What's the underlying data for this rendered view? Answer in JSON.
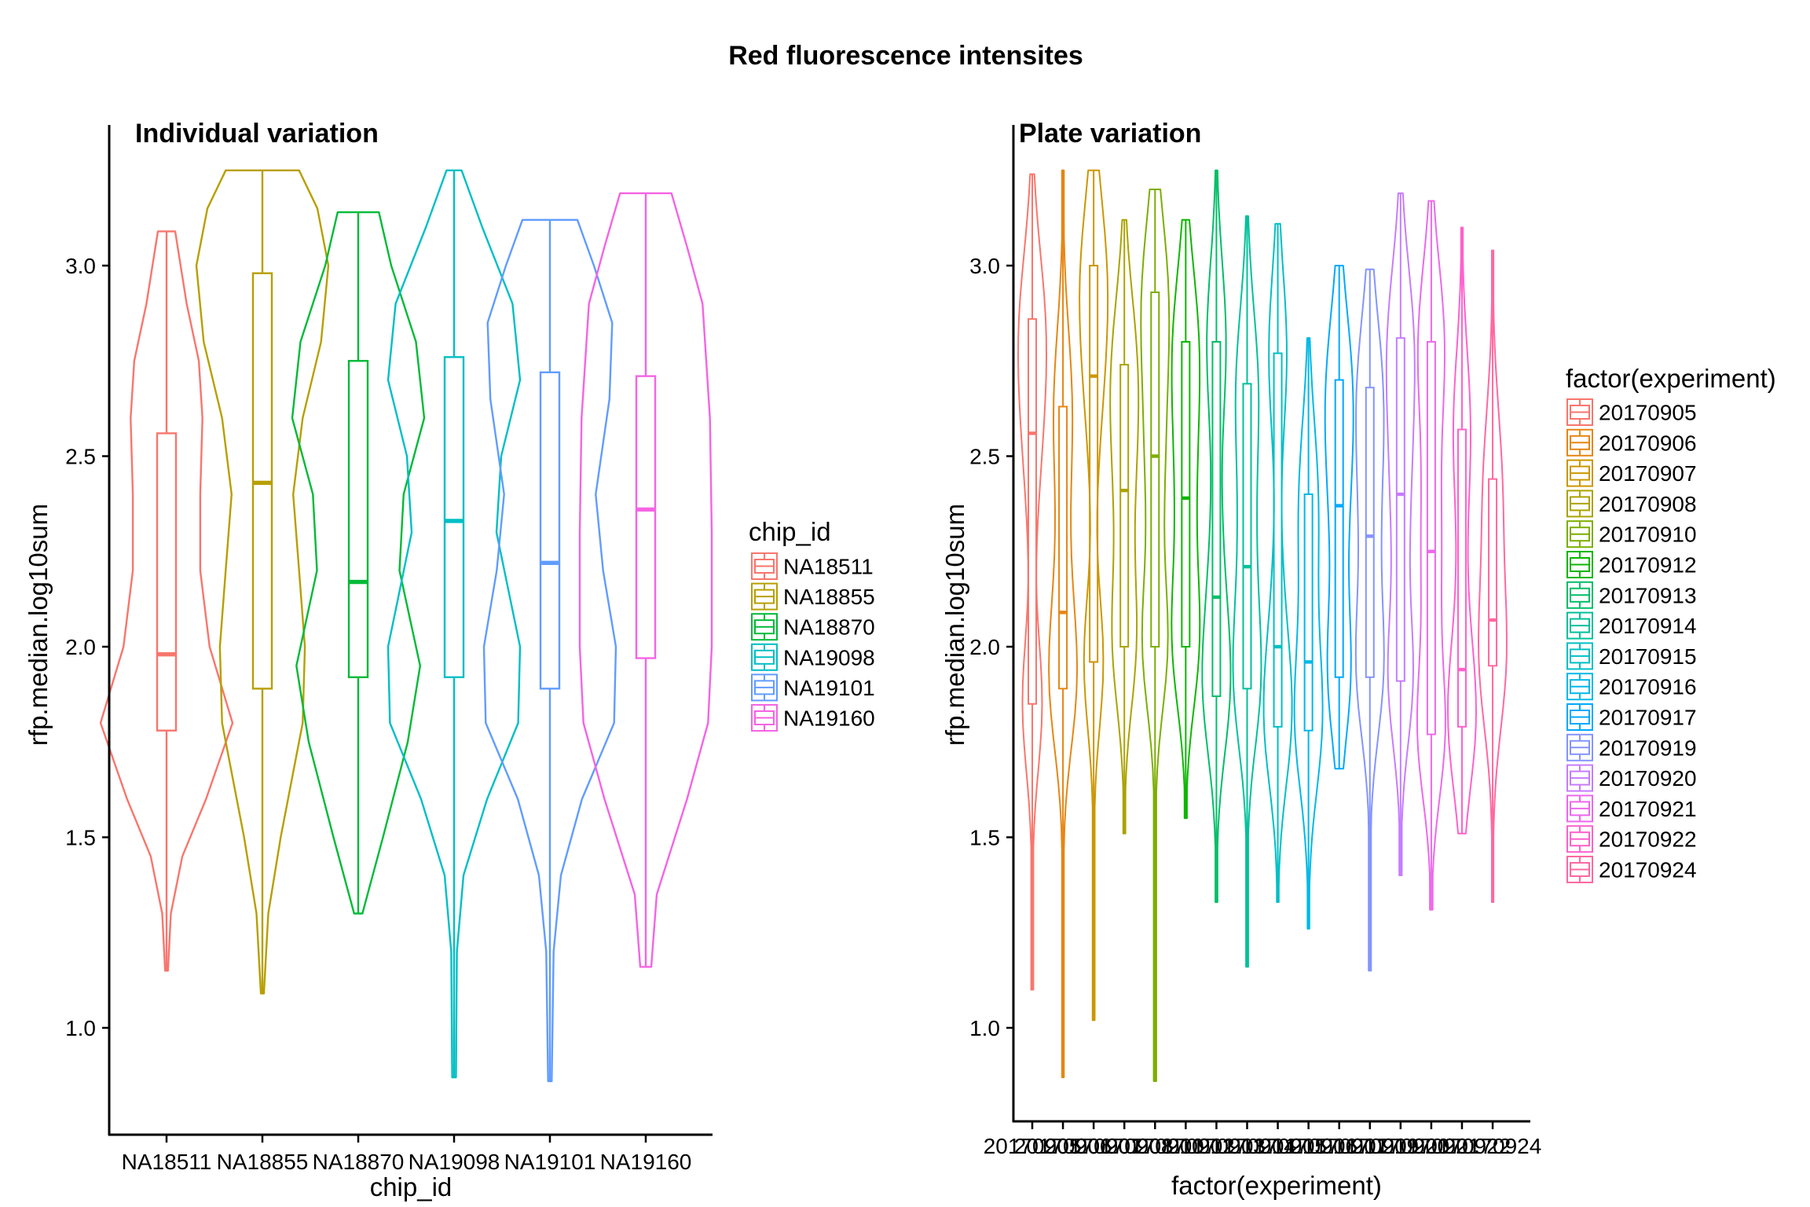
{
  "chart_data": {
    "title": "Red fluorescence intensites",
    "panels": [
      {
        "type": "violin",
        "subtitle": "Individual variation",
        "xlabel": "chip_id",
        "ylabel": "rfp.median.log10sum",
        "ylim": [
          0.75,
          3.3
        ],
        "yticks": [
          1.0,
          1.5,
          2.0,
          2.5,
          3.0
        ],
        "ytick_labels": [
          "1.0",
          "1.5",
          "2.0",
          "2.5",
          "3.0"
        ],
        "categories": [
          "NA18511",
          "NA18855",
          "NA18870",
          "NA19098",
          "NA19101",
          "NA19160"
        ],
        "colors": [
          "#F8766D",
          "#B79F00",
          "#00BA38",
          "#00BFC4",
          "#619CFF",
          "#F564E3"
        ],
        "legend": {
          "title": "chip_id",
          "position": "right"
        },
        "series": [
          {
            "name": "NA18511",
            "min": 1.15,
            "q1": 1.78,
            "median": 1.98,
            "q3": 2.56,
            "max": 3.09,
            "density": [
              [
                1.15,
                0.02
              ],
              [
                1.3,
                0.06
              ],
              [
                1.45,
                0.22
              ],
              [
                1.6,
                0.55
              ],
              [
                1.8,
                0.92
              ],
              [
                2.0,
                0.6
              ],
              [
                2.2,
                0.47
              ],
              [
                2.4,
                0.47
              ],
              [
                2.6,
                0.5
              ],
              [
                2.75,
                0.45
              ],
              [
                2.9,
                0.28
              ],
              [
                3.09,
                0.12
              ]
            ]
          },
          {
            "name": "NA18855",
            "min": 1.09,
            "q1": 1.89,
            "median": 2.43,
            "q3": 2.98,
            "max": 3.25,
            "density": [
              [
                1.09,
                0.02
              ],
              [
                1.3,
                0.08
              ],
              [
                1.5,
                0.25
              ],
              [
                1.8,
                0.55
              ],
              [
                2.0,
                0.58
              ],
              [
                2.2,
                0.5
              ],
              [
                2.4,
                0.42
              ],
              [
                2.6,
                0.55
              ],
              [
                2.8,
                0.8
              ],
              [
                3.0,
                0.9
              ],
              [
                3.15,
                0.75
              ],
              [
                3.25,
                0.5
              ]
            ]
          },
          {
            "name": "NA18870",
            "min": 1.3,
            "q1": 1.92,
            "median": 2.17,
            "q3": 2.75,
            "max": 3.14,
            "density": [
              [
                1.3,
                0.05
              ],
              [
                1.5,
                0.3
              ],
              [
                1.75,
                0.6
              ],
              [
                1.95,
                0.75
              ],
              [
                2.2,
                0.5
              ],
              [
                2.4,
                0.55
              ],
              [
                2.6,
                0.8
              ],
              [
                2.8,
                0.7
              ],
              [
                3.0,
                0.4
              ],
              [
                3.14,
                0.25
              ]
            ]
          },
          {
            "name": "NA19098",
            "min": 0.87,
            "q1": 1.92,
            "median": 2.33,
            "q3": 2.76,
            "max": 3.25,
            "density": [
              [
                0.87,
                0.02
              ],
              [
                1.2,
                0.03
              ],
              [
                1.4,
                0.1
              ],
              [
                1.6,
                0.35
              ],
              [
                1.8,
                0.68
              ],
              [
                2.0,
                0.7
              ],
              [
                2.3,
                0.45
              ],
              [
                2.5,
                0.5
              ],
              [
                2.7,
                0.7
              ],
              [
                2.9,
                0.62
              ],
              [
                3.1,
                0.3
              ],
              [
                3.25,
                0.08
              ]
            ]
          },
          {
            "name": "NA19101",
            "min": 0.86,
            "q1": 1.89,
            "median": 2.22,
            "q3": 2.72,
            "max": 3.12,
            "density": [
              [
                0.86,
                0.02
              ],
              [
                1.2,
                0.04
              ],
              [
                1.4,
                0.12
              ],
              [
                1.6,
                0.35
              ],
              [
                1.8,
                0.7
              ],
              [
                2.0,
                0.72
              ],
              [
                2.2,
                0.58
              ],
              [
                2.4,
                0.5
              ],
              [
                2.65,
                0.65
              ],
              [
                2.85,
                0.68
              ],
              [
                3.0,
                0.48
              ],
              [
                3.12,
                0.3
              ]
            ]
          },
          {
            "name": "NA19160",
            "min": 1.16,
            "q1": 1.97,
            "median": 2.36,
            "q3": 2.71,
            "max": 3.19,
            "density": [
              [
                1.16,
                0.06
              ],
              [
                1.35,
                0.12
              ],
              [
                1.6,
                0.45
              ],
              [
                1.8,
                0.68
              ],
              [
                2.0,
                0.72
              ],
              [
                2.3,
                0.72
              ],
              [
                2.6,
                0.7
              ],
              [
                2.9,
                0.62
              ],
              [
                3.05,
                0.45
              ],
              [
                3.19,
                0.28
              ]
            ]
          }
        ]
      },
      {
        "type": "violin",
        "subtitle": "Plate variation",
        "xlabel": "factor(experiment)",
        "ylabel": "rfp.median.log10sum",
        "ylim": [
          0.75,
          3.3
        ],
        "yticks": [
          1.0,
          1.5,
          2.0,
          2.5,
          3.0
        ],
        "ytick_labels": [
          "1.0",
          "1.5",
          "2.0",
          "2.5",
          "3.0"
        ],
        "categories": [
          "20170905",
          "20170906",
          "20170907",
          "20170908",
          "20170910",
          "20170912",
          "20170913",
          "20170914",
          "20170915",
          "20170916",
          "20170917",
          "20170919",
          "20170920",
          "20170921",
          "20170922",
          "20170924"
        ],
        "colors": [
          "#F8766D",
          "#E68613",
          "#CD9600",
          "#ABA300",
          "#7CAE00",
          "#0CB702",
          "#00BE67",
          "#00C19A",
          "#00BFC4",
          "#00B8E7",
          "#00A9FF",
          "#8494FF",
          "#C77CFF",
          "#ED68ED",
          "#FF61CC",
          "#FF68A1"
        ],
        "legend": {
          "title": "factor(experiment)",
          "position": "right"
        },
        "series": [
          {
            "name": "20170905",
            "min": 1.1,
            "q1": 1.85,
            "median": 2.56,
            "q3": 2.86,
            "max": 3.24
          },
          {
            "name": "20170906",
            "min": 0.87,
            "q1": 1.89,
            "median": 2.09,
            "q3": 2.63,
            "max": 3.25
          },
          {
            "name": "20170907",
            "min": 1.02,
            "q1": 1.96,
            "median": 2.71,
            "q3": 3.0,
            "max": 3.25
          },
          {
            "name": "20170908",
            "min": 1.51,
            "q1": 2.0,
            "median": 2.41,
            "q3": 2.74,
            "max": 3.12
          },
          {
            "name": "20170910",
            "min": 0.86,
            "q1": 2.0,
            "median": 2.5,
            "q3": 2.93,
            "max": 3.2
          },
          {
            "name": "20170912",
            "min": 1.55,
            "q1": 2.0,
            "median": 2.39,
            "q3": 2.8,
            "max": 3.12
          },
          {
            "name": "20170913",
            "min": 1.33,
            "q1": 1.87,
            "median": 2.13,
            "q3": 2.8,
            "max": 3.25
          },
          {
            "name": "20170914",
            "min": 1.16,
            "q1": 1.89,
            "median": 2.21,
            "q3": 2.69,
            "max": 3.13
          },
          {
            "name": "20170915",
            "min": 1.33,
            "q1": 1.79,
            "median": 2.0,
            "q3": 2.77,
            "max": 3.11
          },
          {
            "name": "20170916",
            "min": 1.26,
            "q1": 1.78,
            "median": 1.96,
            "q3": 2.4,
            "max": 2.81
          },
          {
            "name": "20170917",
            "min": 1.68,
            "q1": 1.92,
            "median": 2.37,
            "q3": 2.7,
            "max": 3.0
          },
          {
            "name": "20170919",
            "min": 1.15,
            "q1": 1.92,
            "median": 2.29,
            "q3": 2.68,
            "max": 2.99
          },
          {
            "name": "20170920",
            "min": 1.4,
            "q1": 1.91,
            "median": 2.4,
            "q3": 2.81,
            "max": 3.19
          },
          {
            "name": "20170921",
            "min": 1.31,
            "q1": 1.77,
            "median": 2.25,
            "q3": 2.8,
            "max": 3.17
          },
          {
            "name": "20170922",
            "min": 1.51,
            "q1": 1.79,
            "median": 1.94,
            "q3": 2.57,
            "max": 3.1
          },
          {
            "name": "20170924",
            "min": 1.33,
            "q1": 1.95,
            "median": 2.07,
            "q3": 2.44,
            "max": 3.04
          }
        ]
      }
    ]
  }
}
